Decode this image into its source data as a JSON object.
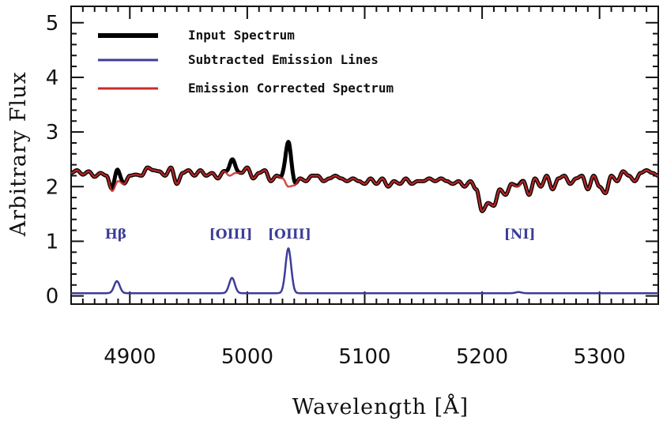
{
  "chart_data": {
    "type": "line",
    "xlabel": "Wavelength [Å]",
    "ylabel": "Arbitrary Flux",
    "xlim": [
      4850,
      5350
    ],
    "ylim": [
      -0.15,
      5.3
    ],
    "xticks": [
      4900,
      5000,
      5100,
      5200,
      5300
    ],
    "yticks": [
      0,
      1,
      2,
      3,
      4,
      5
    ],
    "grid": false,
    "legend_position": "top-left",
    "annotations": [
      {
        "text": "Hβ",
        "x": 4888,
        "y": 1.05
      },
      {
        "text": "[OIII]",
        "x": 4986,
        "y": 1.05
      },
      {
        "text": "[OIII]",
        "x": 5036,
        "y": 1.05
      },
      {
        "text": "[NI]",
        "x": 5232,
        "y": 1.05
      }
    ],
    "emission_lines": [
      {
        "center": 4889,
        "amplitude": 0.22,
        "sigma": 2.4
      },
      {
        "center": 4987,
        "amplitude": 0.28,
        "sigma": 2.4
      },
      {
        "center": 5035,
        "amplitude": 0.82,
        "sigma": 2.4
      },
      {
        "center": 5231,
        "amplitude": 0.02,
        "sigma": 2.4
      }
    ],
    "continuum": {
      "x": [
        4850,
        4855,
        4860,
        4865,
        4870,
        4875,
        4880,
        4885,
        4890,
        4895,
        4900,
        4905,
        4910,
        4915,
        4920,
        4925,
        4930,
        4935,
        4940,
        4945,
        4950,
        4955,
        4960,
        4965,
        4970,
        4975,
        4980,
        4985,
        4990,
        4995,
        5000,
        5005,
        5010,
        5015,
        5020,
        5025,
        5030,
        5035,
        5040,
        5045,
        5050,
        5055,
        5060,
        5065,
        5070,
        5075,
        5080,
        5085,
        5090,
        5095,
        5100,
        5105,
        5110,
        5115,
        5120,
        5125,
        5130,
        5135,
        5140,
        5145,
        5150,
        5155,
        5160,
        5165,
        5170,
        5175,
        5180,
        5185,
        5190,
        5195,
        5200,
        5205,
        5210,
        5215,
        5220,
        5225,
        5230,
        5235,
        5240,
        5245,
        5250,
        5255,
        5260,
        5265,
        5270,
        5275,
        5280,
        5285,
        5290,
        5295,
        5300,
        5305,
        5310,
        5315,
        5320,
        5325,
        5330,
        5335,
        5340,
        5345,
        5350
      ],
      "y": [
        2.25,
        2.3,
        2.22,
        2.28,
        2.18,
        2.25,
        2.2,
        1.92,
        2.1,
        2.05,
        2.2,
        2.22,
        2.2,
        2.35,
        2.3,
        2.28,
        2.2,
        2.35,
        2.05,
        2.25,
        2.3,
        2.2,
        2.3,
        2.2,
        2.25,
        2.15,
        2.28,
        2.2,
        2.25,
        2.25,
        2.35,
        2.15,
        2.25,
        2.3,
        2.1,
        2.2,
        2.15,
        2.0,
        2.02,
        2.15,
        2.1,
        2.2,
        2.2,
        2.1,
        2.15,
        2.2,
        2.15,
        2.1,
        2.15,
        2.1,
        2.05,
        2.15,
        2.05,
        2.15,
        2.0,
        2.1,
        2.05,
        2.15,
        2.05,
        2.1,
        2.1,
        2.15,
        2.1,
        2.15,
        2.1,
        2.05,
        2.1,
        2.0,
        2.1,
        1.95,
        1.55,
        1.7,
        1.65,
        1.95,
        1.85,
        2.05,
        2.0,
        2.1,
        1.85,
        2.15,
        2.0,
        2.2,
        1.95,
        2.15,
        2.2,
        2.05,
        2.15,
        2.2,
        1.95,
        2.2,
        2.0,
        1.88,
        2.2,
        2.1,
        2.28,
        2.2,
        2.1,
        2.25,
        2.3,
        2.25,
        2.2
      ]
    },
    "series": [
      {
        "name": "Input Spectrum",
        "color": "#000000",
        "line_width": 5
      },
      {
        "name": "Subtracted Emission Lines",
        "color": "#3d3d99",
        "line_width": 2.5
      },
      {
        "name": "Emission Corrected Spectrum",
        "color": "#cc2b2b",
        "line_width": 2.5
      }
    ]
  }
}
